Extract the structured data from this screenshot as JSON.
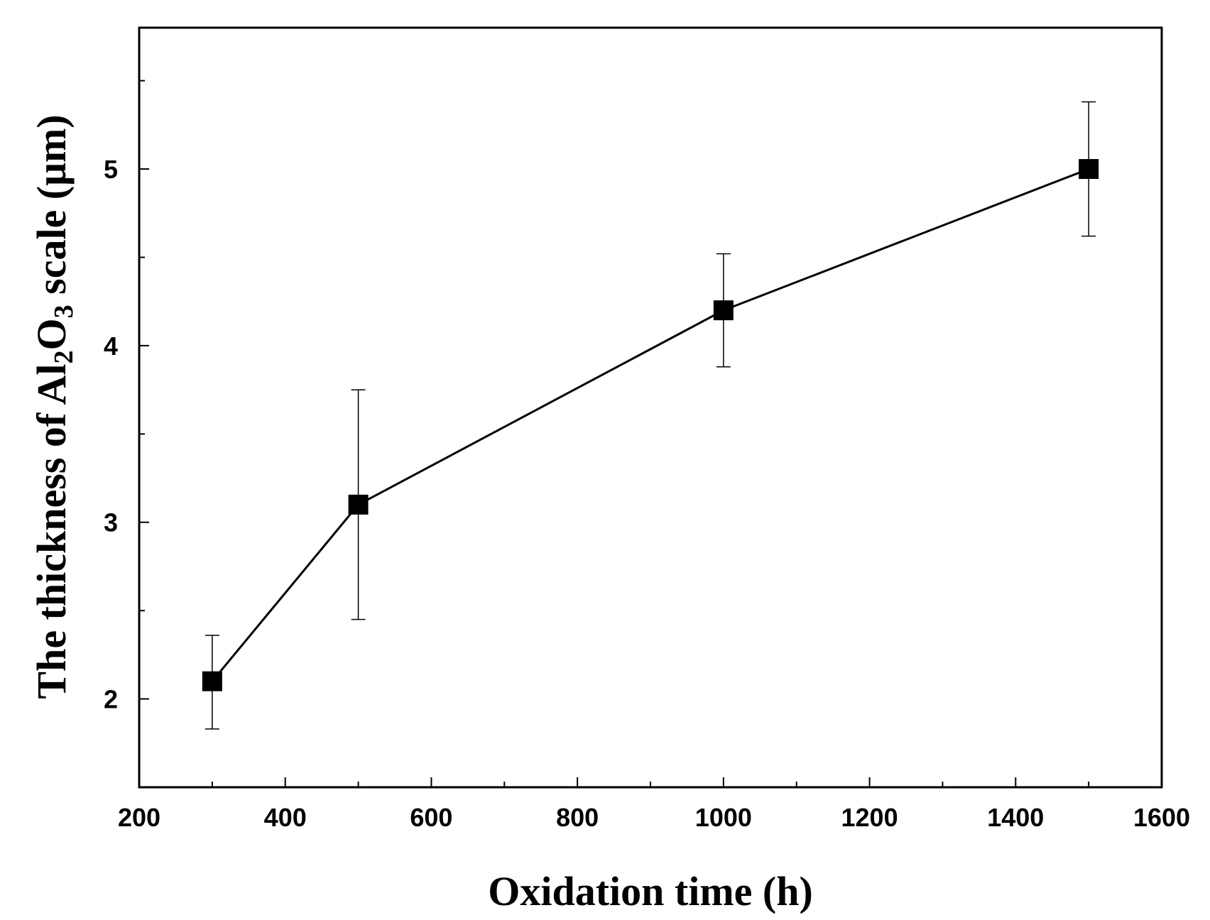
{
  "chart_data": {
    "type": "line",
    "title": "",
    "xlabel": "Oxidation time (h)",
    "ylabel_parts": [
      "The thickness of Al",
      "2",
      "O",
      "3",
      " scale (μm)"
    ],
    "xlim": [
      200,
      1600
    ],
    "ylim": [
      1.5,
      5.8
    ],
    "xticks": [
      200,
      400,
      600,
      800,
      1000,
      1200,
      1400,
      1600
    ],
    "yticks": [
      2,
      3,
      4,
      5
    ],
    "grid": false,
    "legend": "none",
    "series": [
      {
        "name": "Al2O3 scale thickness",
        "marker": "square",
        "color": "#000000",
        "points": [
          {
            "x": 300,
            "y": 2.1,
            "err_low": 1.83,
            "err_high": 2.36
          },
          {
            "x": 500,
            "y": 3.1,
            "err_low": 2.45,
            "err_high": 3.75
          },
          {
            "x": 1000,
            "y": 4.2,
            "err_low": 3.88,
            "err_high": 4.52
          },
          {
            "x": 1500,
            "y": 5.0,
            "err_low": 4.62,
            "err_high": 5.38
          }
        ]
      }
    ]
  }
}
